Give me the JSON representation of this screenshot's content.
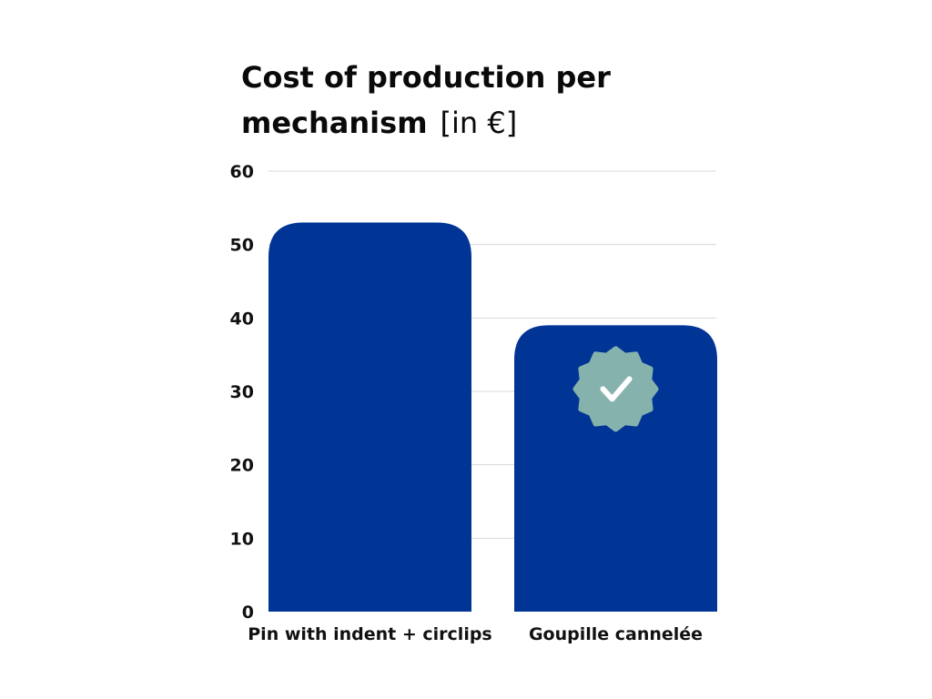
{
  "chart_data": {
    "type": "bar",
    "title_line1": "Cost of production per",
    "title_line2": "mechanism",
    "title_unit": "[in €]",
    "categories": [
      "Pin with indent + circlips",
      "Goupille cannelée"
    ],
    "values": [
      53,
      39
    ],
    "yticks": [
      "0",
      "10",
      "20",
      "30",
      "40",
      "50",
      "60"
    ],
    "ylim": [
      0,
      60
    ],
    "grid": true,
    "bar_color": "#003595",
    "highlight": {
      "category_index": 1,
      "icon": "check-badge-icon",
      "badge_color": "#86b2ad",
      "check_color": "#ffffff"
    }
  }
}
